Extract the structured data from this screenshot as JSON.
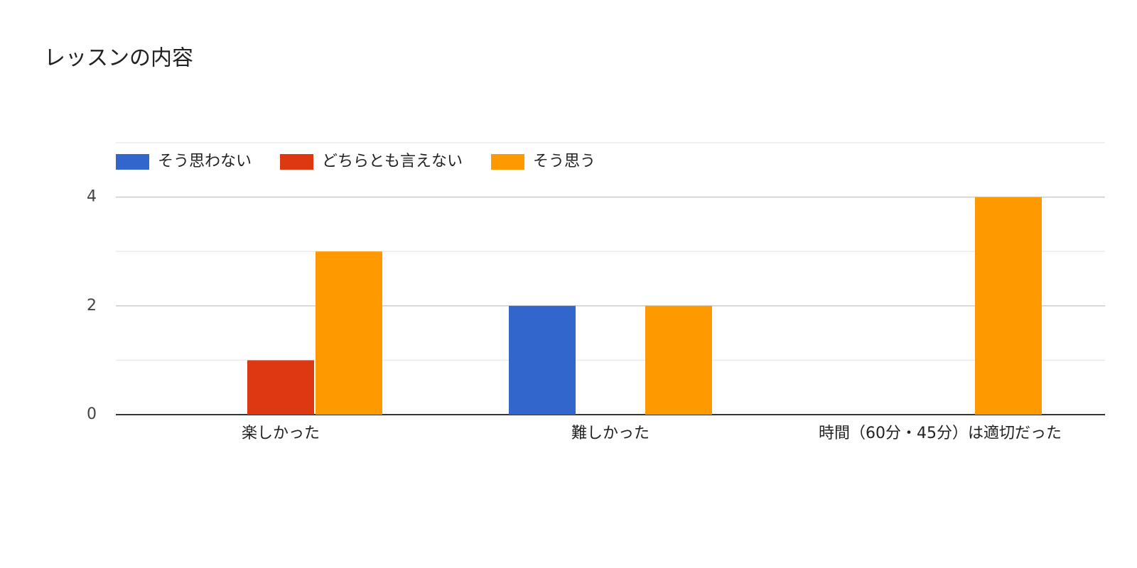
{
  "chart_data": {
    "type": "bar",
    "title": "レッスンの内容",
    "categories": [
      "楽しかった",
      "難しかった",
      "時間（60分・45分）は適切だった"
    ],
    "series": [
      {
        "name": "そう思わない",
        "color": "#3366cc",
        "values": [
          0,
          2,
          0
        ]
      },
      {
        "name": "どちらとも言えない",
        "color": "#dc3912",
        "values": [
          1,
          0,
          0
        ]
      },
      {
        "name": "そう思う",
        "color": "#ff9900",
        "values": [
          3,
          2,
          4
        ]
      }
    ],
    "ylim": [
      0,
      5
    ],
    "yticks": [
      0,
      2,
      4
    ],
    "yminor": [
      1,
      3,
      5
    ],
    "grid": true,
    "legend": "top"
  }
}
